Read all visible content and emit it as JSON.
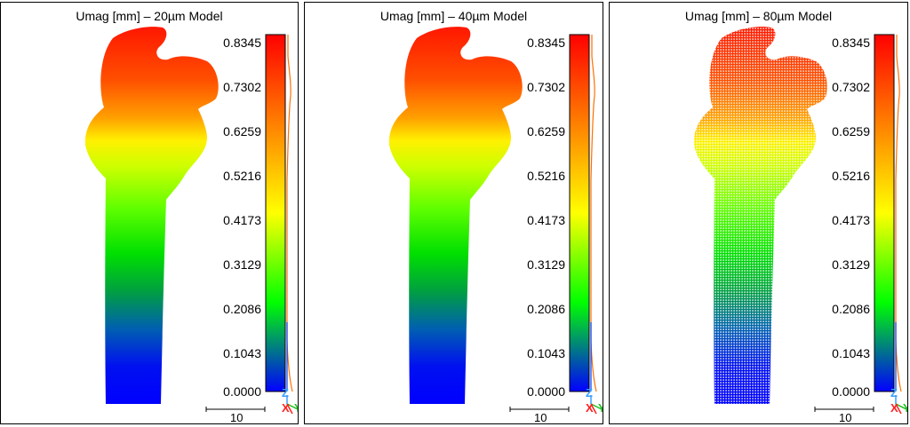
{
  "panels": [
    {
      "title": "Umag [mm] – 20µm Model",
      "mesh": false
    },
    {
      "title": "Umag [mm] – 40µm Model",
      "mesh": false
    },
    {
      "title": "Umag [mm] – 80µm Model",
      "mesh": true
    }
  ],
  "colorbar": {
    "labels": [
      "0.8345",
      "0.7302",
      "0.6259",
      "0.5216",
      "0.4173",
      "0.3129",
      "0.2086",
      "0.1043",
      "0.0000"
    ],
    "min": 0.0,
    "max": 0.8345,
    "colors": [
      "#0000ff",
      "#00ff00",
      "#ffff00",
      "#ff8000",
      "#ff0000"
    ]
  },
  "scale_bar": {
    "label": "10"
  },
  "triad": {
    "z": "Z",
    "x": "X",
    "y": "Y",
    "z_color": "#3aa0ff",
    "x_color": "#ff2020",
    "y_color": "#20c020"
  }
}
